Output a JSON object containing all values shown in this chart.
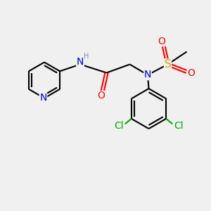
{
  "bg_color": "#f0f0f0",
  "bond_color": "#000000",
  "n_color": "#0000cc",
  "o_color": "#ff0000",
  "s_color": "#ccaa00",
  "cl_color": "#00aa00",
  "h_color": "#7a9090",
  "line_width": 1.5,
  "font_size_atom": 10,
  "font_size_small": 8,
  "xlim": [
    0,
    10
  ],
  "ylim": [
    0,
    10
  ]
}
